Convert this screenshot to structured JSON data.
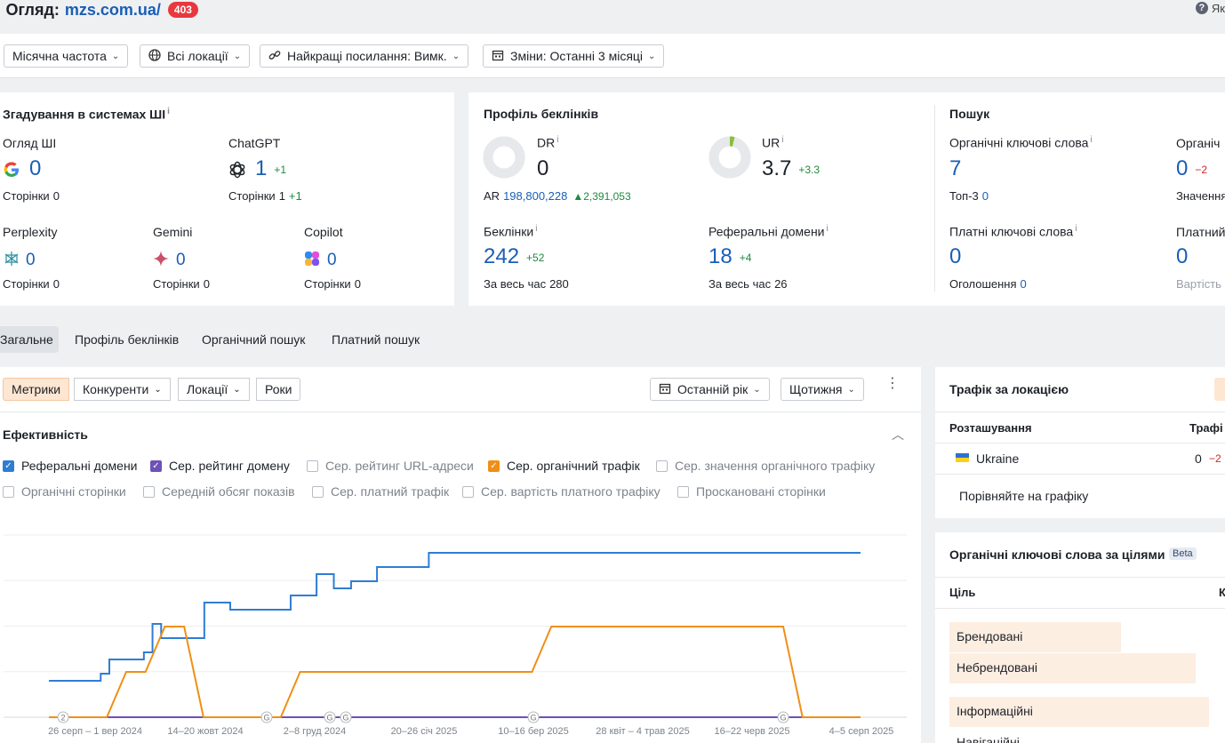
{
  "header": {
    "title": "Огляд:",
    "domain": "mzs.com.ua/",
    "badge": "403",
    "help": "Як"
  },
  "filters": {
    "frequency": "Місячна частота",
    "locations": "Всі локації",
    "best_links": "Найкращі посилання: Вимк.",
    "changes": "Зміни: Останні 3 місяці"
  },
  "ai_card": {
    "title": "Згадування в системах ШІ",
    "overview": {
      "label": "Огляд ШІ",
      "value": "0",
      "pages_label": "Сторінки",
      "pages": "0"
    },
    "chatgpt": {
      "label": "ChatGPT",
      "value": "1",
      "delta": "+1",
      "pages_label": "Сторінки",
      "pages": "1",
      "pages_delta": "+1"
    },
    "perplexity": {
      "label": "Perplexity",
      "value": "0",
      "pages_label": "Сторінки",
      "pages": "0"
    },
    "gemini": {
      "label": "Gemini",
      "value": "0",
      "pages_label": "Сторінки",
      "pages": "0"
    },
    "copilot": {
      "label": "Copilot",
      "value": "0",
      "pages_label": "Сторінки",
      "pages": "0"
    }
  },
  "backlink_card": {
    "title": "Профіль беклінків",
    "dr": {
      "label": "DR",
      "value": "0",
      "ar_label": "AR",
      "ar": "198,800,228",
      "ar_delta": "2,391,053",
      "ring_fraction": 0
    },
    "ur": {
      "label": "UR",
      "value": "3.7",
      "delta": "+3.3",
      "ring_fraction": 0.037
    },
    "backlinks": {
      "label": "Беклінки",
      "value": "242",
      "delta": "+52",
      "all_time_label": "За весь час",
      "all_time": "280"
    },
    "ref_domains": {
      "label": "Реферальні домени",
      "value": "18",
      "delta": "+4",
      "all_time_label": "За весь час",
      "all_time": "26"
    }
  },
  "search_card": {
    "title": "Пошук",
    "organic_kw": {
      "label": "Органічні ключові слова",
      "value": "7",
      "top3_label": "Топ-3",
      "top3": "0"
    },
    "organic_traffic": {
      "label": "Органіч",
      "value": "0",
      "delta": "−2",
      "sub_label": "Значення"
    },
    "paid_kw": {
      "label": "Платні ключові слова",
      "value": "0",
      "ads_label": "Оголошення",
      "ads": "0"
    },
    "paid_traffic": {
      "label": "Платний",
      "value": "0",
      "sub_label": "Вартість"
    }
  },
  "tabs": [
    "Загальне",
    "Профіль беклінків",
    "Органічний пошук",
    "Платний пошук"
  ],
  "chart_toolbar": {
    "segments": [
      "Метрики",
      "Конкуренти",
      "Локації",
      "Роки"
    ],
    "period": "Останній рік",
    "interval": "Щотижня"
  },
  "performance": {
    "title": "Ефективність",
    "checkboxes": [
      {
        "label": "Реферальні домени",
        "checked": true,
        "color": "#2f7dd3"
      },
      {
        "label": "Сер. рейтинг домену",
        "checked": true,
        "color": "#6e51b8"
      },
      {
        "label": "Сер. рейтинг URL-адреси",
        "checked": false
      },
      {
        "label": "Сер. органічний трафік",
        "checked": true,
        "color": "#f08f16"
      },
      {
        "label": "Сер. значення органічного трафіку",
        "checked": false
      },
      {
        "label": "Органічні сторінки",
        "checked": false
      },
      {
        "label": "Середній обсяг показів",
        "checked": false
      },
      {
        "label": "Сер. платний трафік",
        "checked": false
      },
      {
        "label": "Сер. вартість платного трафіку",
        "checked": false
      },
      {
        "label": "Проскановані сторінки",
        "checked": false
      }
    ]
  },
  "chart_data": {
    "type": "line",
    "x_tick_labels": [
      "26 серп – 1 вер 2024",
      "14–20 жовт 2024",
      "2–8 груд 2024",
      "20–26 січ 2025",
      "10–16 бер 2025",
      "28 квіт – 4 трав 2025",
      "16–22 черв 2025",
      "4–5 серп 2025"
    ],
    "series": [
      {
        "name": "Реферальні домени",
        "color": "#2f7dd3",
        "values": [
          8,
          8,
          8,
          8,
          8,
          8,
          9,
          11,
          11,
          11,
          11,
          12,
          16,
          14,
          14,
          14,
          14,
          14,
          19,
          19,
          19,
          18,
          18,
          18,
          18,
          18,
          18,
          18,
          20,
          20,
          20,
          23,
          23,
          21,
          21,
          22,
          22,
          22,
          24,
          24,
          24,
          24,
          24,
          24,
          26,
          26,
          26,
          26,
          26,
          26,
          26,
          26,
          26,
          26,
          26,
          26,
          26,
          26,
          26,
          26,
          26,
          26,
          26,
          26,
          26,
          26,
          26,
          26,
          26,
          26,
          26,
          26,
          26,
          26,
          26,
          26,
          26,
          26,
          26,
          26,
          26,
          26,
          26,
          26,
          26,
          26,
          26,
          26,
          26,
          26,
          26,
          26,
          26,
          26,
          26
        ]
      },
      {
        "name": "Сер. рейтинг домену",
        "color": "#6e51b8",
        "values": [
          0,
          0,
          0,
          0,
          0,
          0,
          0,
          0,
          0,
          0,
          0,
          0,
          0,
          0,
          0,
          0,
          0,
          0,
          0,
          0,
          0,
          0,
          0,
          0,
          0,
          0,
          0,
          0,
          0,
          0,
          0,
          0,
          0,
          0,
          0,
          0,
          0,
          0,
          0,
          0,
          0,
          0,
          0,
          0,
          0,
          0,
          0,
          0,
          0,
          0,
          0,
          0,
          0,
          0,
          0,
          0,
          0,
          0,
          0,
          0,
          0,
          0
        ]
      },
      {
        "name": "Сер. органічний трафік",
        "color": "#f08f16",
        "values": [
          0,
          0,
          0,
          0,
          1,
          1,
          2,
          2,
          0,
          0,
          0,
          0,
          0,
          1,
          1,
          1,
          1,
          1,
          1,
          1,
          1,
          1,
          1,
          1,
          1,
          1,
          2,
          2,
          2,
          2,
          2,
          2,
          2,
          2,
          2,
          2,
          2,
          2,
          2,
          0,
          0,
          0,
          0
        ]
      }
    ],
    "annotations": [
      "2",
      "G",
      "G",
      "G",
      "G",
      "G"
    ]
  },
  "location_panel": {
    "title": "Трафік за локацією",
    "col_location": "Розташування",
    "col_traffic": "Трафі",
    "rows": [
      {
        "flag": "ua-flag",
        "name": "Ukraine",
        "traffic": "0",
        "delta": "−2"
      }
    ],
    "compare": "Порівняйте на графіку"
  },
  "kw_panel": {
    "title": "Органічні ключові слова за цілями",
    "beta": "Beta",
    "col_goal": "Ціль",
    "col_k": "К",
    "rows": [
      {
        "label": "Брендовані",
        "fill": 0.66
      },
      {
        "label": "Небрендовані",
        "fill": 0.95
      },
      {
        "label": "Інформаційні",
        "fill": 1.0
      },
      {
        "label": "Навігаційні",
        "fill": 0.0
      }
    ]
  }
}
